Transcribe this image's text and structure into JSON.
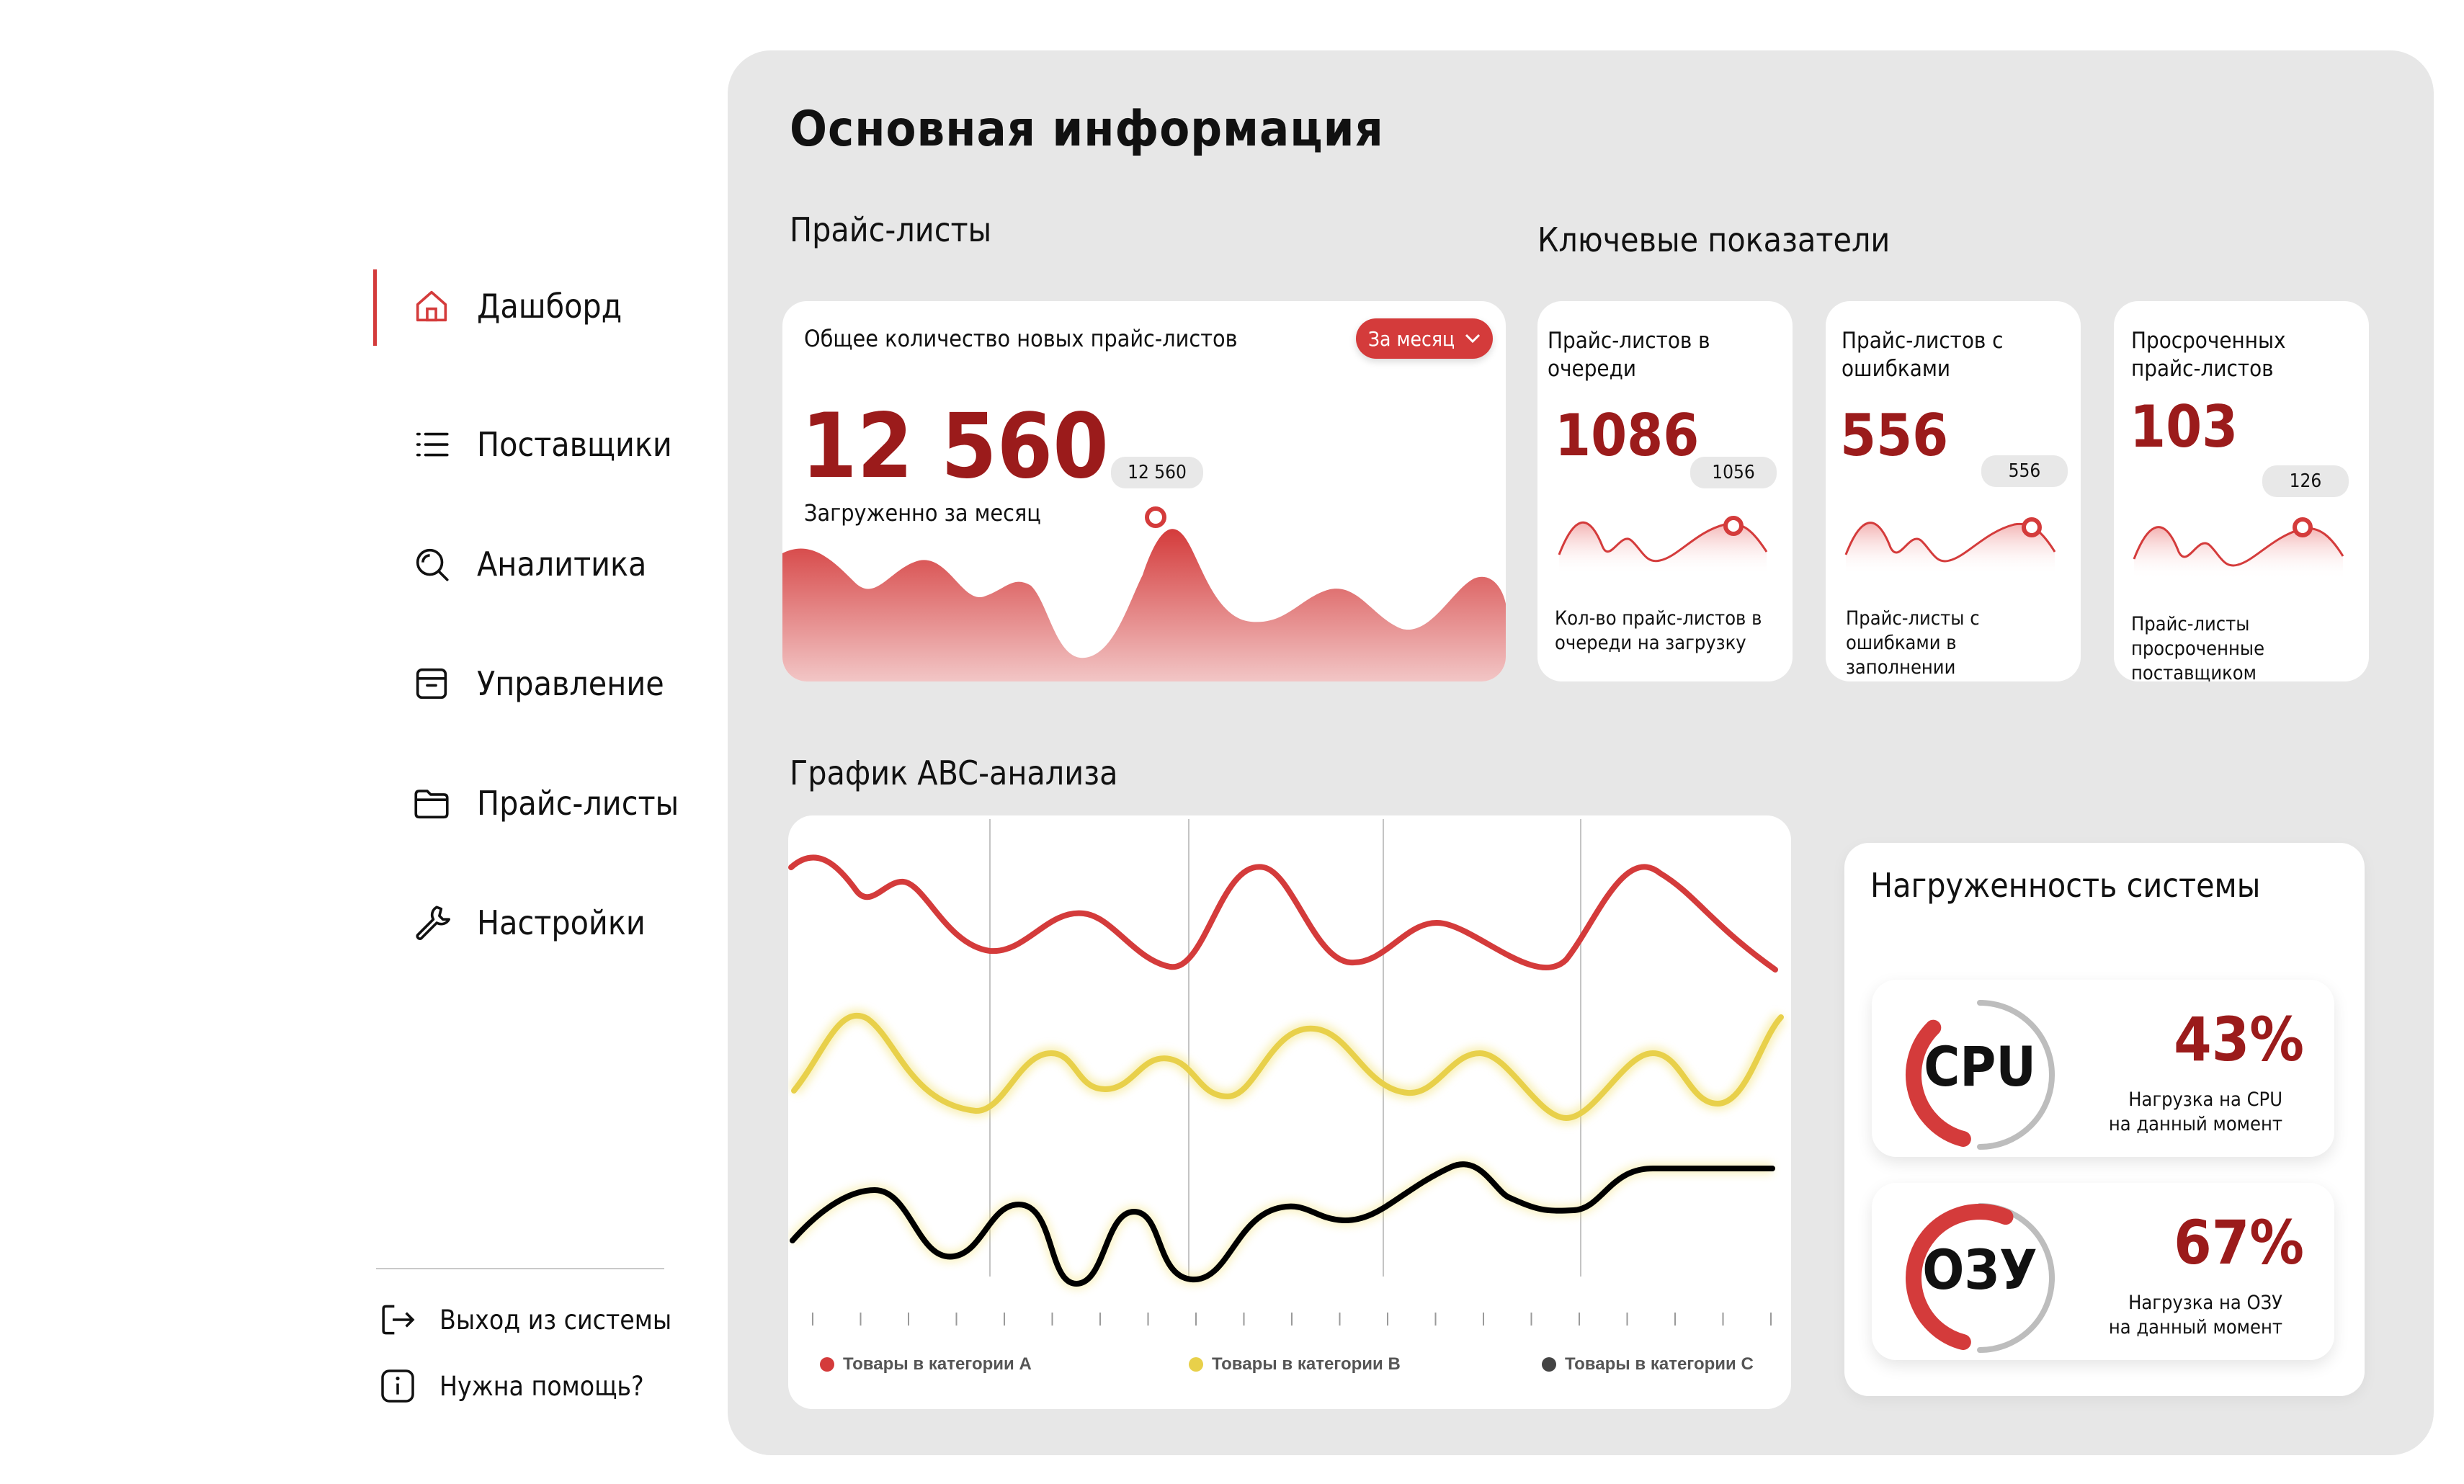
{
  "sidebar": {
    "items": [
      {
        "label": "Дашборд",
        "icon": "home-icon"
      },
      {
        "label": "Поставщики",
        "icon": "list-icon"
      },
      {
        "label": "Аналитика",
        "icon": "analytics-search-icon"
      },
      {
        "label": "Управление",
        "icon": "archive-box-icon"
      },
      {
        "label": "Прайс-листы",
        "icon": "folder-icon"
      },
      {
        "label": "Настройки",
        "icon": "wrench-icon"
      }
    ],
    "footer": [
      {
        "label": "Выход из системы",
        "icon": "logout-icon"
      },
      {
        "label": "Нужна помощь?",
        "icon": "info-icon"
      }
    ]
  },
  "main": {
    "title": "Основная информация",
    "pricelists_section": "Прайс-листы",
    "key_section": "Ключевые показатели",
    "abc_section": "График ABC-анализа",
    "pricelist_card": {
      "title": "Общее количество новых прайс-листов",
      "period_button": "За месяц",
      "value": "12 560",
      "caption": "Загруженно за месяц",
      "peak_label": "12 560"
    },
    "kpi": [
      {
        "title": "Прайс-листов в очереди",
        "value": "1086",
        "marker": "1056",
        "caption": "Кол-во прайс-листов в очереди на загрузку"
      },
      {
        "title": "Прайс-листов с ошибками",
        "value": "556",
        "marker": "556",
        "caption": "Прайс-листы с ошибками в заполнении"
      },
      {
        "title": "Просроченных прайс-листов",
        "value": "103",
        "marker": "126",
        "caption": "Прайс-листы просроченные поставщиком"
      }
    ],
    "abc_legend": [
      {
        "label": "Товары в категории А",
        "color": "#d43b3b"
      },
      {
        "label": "Товары в категории B",
        "color": "#e8d04a"
      },
      {
        "label": "Товары в категории C",
        "color": "#444444"
      }
    ],
    "system": {
      "title": "Нагруженность системы",
      "cpu": {
        "name": "CPU",
        "percent": "43%",
        "caption_1": "Нагрузка на CPU",
        "caption_2": "на данный момент",
        "level": 0.43
      },
      "ram": {
        "name": "ОЗУ",
        "percent": "67%",
        "caption_1": "Нагрузка на ОЗУ",
        "caption_2": "на данный момент",
        "level": 0.67
      }
    }
  },
  "colors": {
    "accent": "#d43b3b",
    "dark_accent": "#9b1b1b",
    "panel": "#e7e7e7"
  }
}
